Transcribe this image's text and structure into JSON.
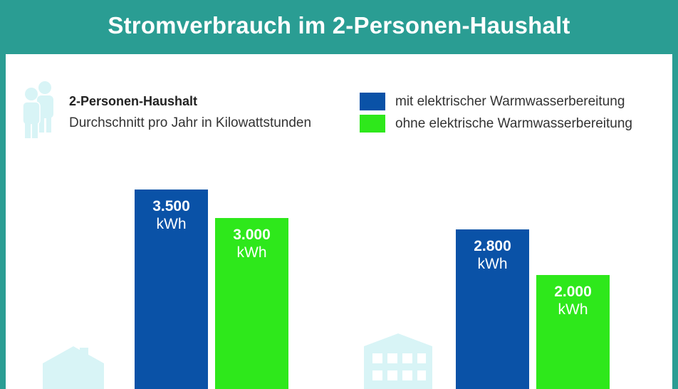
{
  "header": {
    "title": "Stromverbrauch im 2-Personen-Haushalt"
  },
  "intro": {
    "title": "2-Personen-Haushalt",
    "description": "Durchschnitt pro Jahr in Kilowattstunden"
  },
  "legend": [
    {
      "label": "mit elektrischer Warmwasserbereitung",
      "color": "#0a52a7"
    },
    {
      "label": "ohne elektrische Warmwasserbereitung",
      "color": "#2ee81b"
    }
  ],
  "colors": {
    "header": "#2a9d93",
    "icon": "#d8f4f6"
  },
  "icons": {
    "people": "people-icon",
    "house": "house-icon",
    "apartment": "apartment-building-icon"
  },
  "chart_data": {
    "type": "bar",
    "groups": [
      {
        "icon": "house-icon",
        "bars": [
          {
            "series": "mit elektrischer Warmwasserbereitung",
            "value": 3500,
            "value_label": "3.500",
            "unit": "kWh"
          },
          {
            "series": "ohne elektrische Warmwasserbereitung",
            "value": 3000,
            "value_label": "3.000",
            "unit": "kWh"
          }
        ]
      },
      {
        "icon": "apartment-building-icon",
        "bars": [
          {
            "series": "mit elektrischer Warmwasserbereitung",
            "value": 2800,
            "value_label": "2.800",
            "unit": "kWh"
          },
          {
            "series": "ohne elektrische Warmwasserbereitung",
            "value": 2000,
            "value_label": "2.000",
            "unit": "kWh"
          }
        ]
      }
    ],
    "series": [
      {
        "name": "mit elektrischer Warmwasserbereitung",
        "color": "#0a52a7"
      },
      {
        "name": "ohne elektrische Warmwasserbereitung",
        "color": "#2ee81b"
      }
    ],
    "legend_position": "top-right"
  }
}
